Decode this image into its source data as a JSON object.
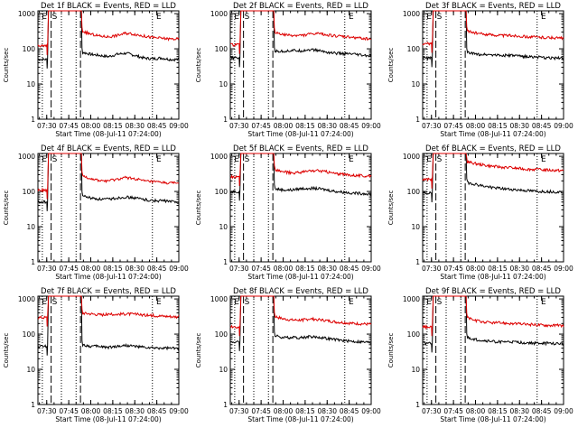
{
  "chart_data": [
    {
      "type": "line",
      "title": "Det 1f BLACK = Events, RED = LLD",
      "xlabel": "Start Time (08-Jul-11 07:24:00)",
      "ylabel": "Counts/sec",
      "x_ticks": [
        "07:30",
        "07:45",
        "08:00",
        "08:15",
        "08:30",
        "08:45",
        "09:00"
      ],
      "y_ticks": [
        "1",
        "10",
        "100",
        "1000"
      ],
      "ylim": [
        1,
        1200
      ],
      "xlim_minutes": [
        0,
        96
      ],
      "markers": [
        "E",
        "S",
        "E"
      ],
      "series": [
        {
          "name": "Events",
          "color": "#000000",
          "pre": 50,
          "post": [
            80,
            70,
            65,
            60,
            70,
            75,
            65,
            55,
            52,
            55,
            50,
            50
          ]
        },
        {
          "name": "LLD",
          "color": "#dd0000",
          "pre": 120,
          "post": [
            320,
            260,
            230,
            220,
            240,
            280,
            260,
            230,
            210,
            200,
            190,
            190
          ]
        }
      ]
    },
    {
      "type": "line",
      "title": "Det 2f BLACK = Events, RED = LLD",
      "xlabel": "Start Time (08-Jul-11 07:24:00)",
      "ylabel": "Counts/sec",
      "x_ticks": [
        "07:30",
        "07:45",
        "08:00",
        "08:15",
        "08:30",
        "08:45",
        "09:00"
      ],
      "y_ticks": [
        "1",
        "10",
        "100",
        "1000"
      ],
      "ylim": [
        1,
        1200
      ],
      "xlim_minutes": [
        0,
        96
      ],
      "markers": [
        "E",
        "S",
        "E"
      ],
      "series": [
        {
          "name": "Events",
          "color": "#000000",
          "pre": 55,
          "post": [
            85,
            85,
            90,
            88,
            95,
            90,
            80,
            75,
            72,
            70,
            65,
            62
          ]
        },
        {
          "name": "LLD",
          "color": "#dd0000",
          "pre": 130,
          "post": [
            300,
            250,
            240,
            240,
            260,
            270,
            250,
            230,
            220,
            210,
            200,
            190
          ]
        }
      ]
    },
    {
      "type": "line",
      "title": "Det 3f BLACK = Events, RED = LLD",
      "xlabel": "Start Time (08-Jul-11 07:24:00)",
      "ylabel": "Counts/sec",
      "x_ticks": [
        "07:30",
        "07:45",
        "08:00",
        "08:15",
        "08:30",
        "08:45",
        "09:00"
      ],
      "y_ticks": [
        "1",
        "10",
        "100",
        "1000"
      ],
      "ylim": [
        1,
        1200
      ],
      "xlim_minutes": [
        0,
        96
      ],
      "markers": [
        "E",
        "S",
        "E"
      ],
      "series": [
        {
          "name": "Events",
          "color": "#000000",
          "pre": 55,
          "post": [
            80,
            70,
            70,
            68,
            65,
            65,
            62,
            60,
            58,
            55,
            55,
            55
          ]
        },
        {
          "name": "LLD",
          "color": "#dd0000",
          "pre": 140,
          "post": [
            330,
            280,
            260,
            250,
            240,
            240,
            230,
            220,
            215,
            210,
            205,
            200
          ]
        }
      ]
    },
    {
      "type": "line",
      "title": "Det 4f BLACK = Events, RED = LLD",
      "xlabel": "Start Time (08-Jul-11 07:24:00)",
      "ylabel": "Counts/sec",
      "x_ticks": [
        "07:30",
        "07:45",
        "08:00",
        "08:15",
        "08:30",
        "08:45",
        "09:00"
      ],
      "y_ticks": [
        "1",
        "10",
        "100",
        "1000"
      ],
      "ylim": [
        1,
        1200
      ],
      "xlim_minutes": [
        0,
        96
      ],
      "markers": [
        "E",
        "S",
        "E"
      ],
      "series": [
        {
          "name": "Events",
          "color": "#000000",
          "pre": 50,
          "post": [
            75,
            65,
            60,
            60,
            65,
            70,
            65,
            60,
            55,
            55,
            52,
            50
          ]
        },
        {
          "name": "LLD",
          "color": "#dd0000",
          "pre": 110,
          "post": [
            280,
            230,
            200,
            200,
            220,
            250,
            230,
            200,
            190,
            180,
            175,
            170
          ]
        }
      ]
    },
    {
      "type": "line",
      "title": "Det 5f BLACK = Events, RED = LLD",
      "xlabel": "Start Time (08-Jul-11 07:24:00)",
      "ylabel": "Counts/sec",
      "x_ticks": [
        "07:30",
        "07:45",
        "08:00",
        "08:15",
        "08:30",
        "08:45",
        "09:00"
      ],
      "y_ticks": [
        "1",
        "10",
        "100",
        "1000"
      ],
      "ylim": [
        1,
        1200
      ],
      "xlim_minutes": [
        0,
        96
      ],
      "markers": [
        "E",
        "S",
        "E"
      ],
      "series": [
        {
          "name": "Events",
          "color": "#000000",
          "pre": 100,
          "post": [
            120,
            110,
            110,
            120,
            125,
            120,
            110,
            100,
            95,
            90,
            88,
            85
          ]
        },
        {
          "name": "LLD",
          "color": "#dd0000",
          "pre": 260,
          "post": [
            420,
            360,
            340,
            350,
            380,
            390,
            360,
            320,
            300,
            290,
            280,
            270
          ]
        }
      ]
    },
    {
      "type": "line",
      "title": "Det 6f BLACK = Events, RED = LLD",
      "xlabel": "Start Time (08-Jul-11 07:24:00)",
      "ylabel": "Counts/sec",
      "x_ticks": [
        "07:30",
        "07:45",
        "08:00",
        "08:15",
        "08:30",
        "08:45",
        "09:00"
      ],
      "y_ticks": [
        "1",
        "10",
        "100",
        "1000"
      ],
      "ylim": [
        1,
        1200
      ],
      "xlim_minutes": [
        0,
        96
      ],
      "markers": [
        "E",
        "S",
        "E"
      ],
      "series": [
        {
          "name": "Events",
          "color": "#000000",
          "pre": 90,
          "post": [
            180,
            160,
            140,
            130,
            120,
            115,
            110,
            105,
            100,
            100,
            98,
            95
          ]
        },
        {
          "name": "LLD",
          "color": "#dd0000",
          "pre": 220,
          "post": [
            700,
            620,
            560,
            520,
            490,
            470,
            450,
            430,
            420,
            410,
            400,
            390
          ]
        }
      ]
    },
    {
      "type": "line",
      "title": "Det 7f BLACK = Events, RED = LLD",
      "xlabel": "Start Time (08-Jul-11 07:24:00)",
      "ylabel": "Counts/sec",
      "x_ticks": [
        "07:30",
        "07:45",
        "08:00",
        "08:15",
        "08:30",
        "08:45",
        "09:00"
      ],
      "y_ticks": [
        "1",
        "10",
        "100",
        "1000"
      ],
      "ylim": [
        1,
        1200
      ],
      "xlim_minutes": [
        0,
        96
      ],
      "markers": [
        "E",
        "S",
        "E"
      ],
      "series": [
        {
          "name": "Events",
          "color": "#000000",
          "pre": 45,
          "post": [
            50,
            45,
            45,
            42,
            45,
            48,
            45,
            42,
            40,
            40,
            40,
            38
          ]
        },
        {
          "name": "LLD",
          "color": "#dd0000",
          "pre": 300,
          "post": [
            400,
            380,
            360,
            360,
            370,
            380,
            370,
            350,
            340,
            330,
            320,
            310
          ]
        }
      ]
    },
    {
      "type": "line",
      "title": "Det 8f BLACK = Events, RED = LLD",
      "xlabel": "Start Time (08-Jul-11 07:24:00)",
      "ylabel": "Counts/sec",
      "x_ticks": [
        "07:30",
        "07:45",
        "08:00",
        "08:15",
        "08:30",
        "08:45",
        "09:00"
      ],
      "y_ticks": [
        "1",
        "10",
        "100",
        "1000"
      ],
      "ylim": [
        1,
        1200
      ],
      "xlim_minutes": [
        0,
        96
      ],
      "markers": [
        "E",
        "S",
        "E"
      ],
      "series": [
        {
          "name": "Events",
          "color": "#000000",
          "pre": 60,
          "post": [
            90,
            80,
            80,
            80,
            85,
            82,
            75,
            70,
            65,
            62,
            60,
            58
          ]
        },
        {
          "name": "LLD",
          "color": "#dd0000",
          "pre": 160,
          "post": [
            320,
            270,
            250,
            250,
            270,
            260,
            240,
            220,
            210,
            200,
            195,
            190
          ]
        }
      ]
    },
    {
      "type": "line",
      "title": "Det 9f BLACK = Events, RED = LLD",
      "xlabel": "Start Time (08-Jul-11 07:24:00)",
      "ylabel": "Counts/sec",
      "x_ticks": [
        "07:30",
        "07:45",
        "08:00",
        "08:15",
        "08:30",
        "08:45",
        "09:00"
      ],
      "y_ticks": [
        "1",
        "10",
        "100",
        "1000"
      ],
      "ylim": [
        1,
        1200
      ],
      "xlim_minutes": [
        0,
        96
      ],
      "markers": [
        "E",
        "S",
        "E"
      ],
      "series": [
        {
          "name": "Events",
          "color": "#000000",
          "pre": 55,
          "post": [
            80,
            70,
            65,
            62,
            60,
            60,
            58,
            56,
            55,
            55,
            54,
            52
          ]
        },
        {
          "name": "LLD",
          "color": "#dd0000",
          "pre": 160,
          "post": [
            300,
            240,
            220,
            210,
            210,
            200,
            195,
            190,
            185,
            180,
            178,
            175
          ]
        }
      ]
    }
  ]
}
